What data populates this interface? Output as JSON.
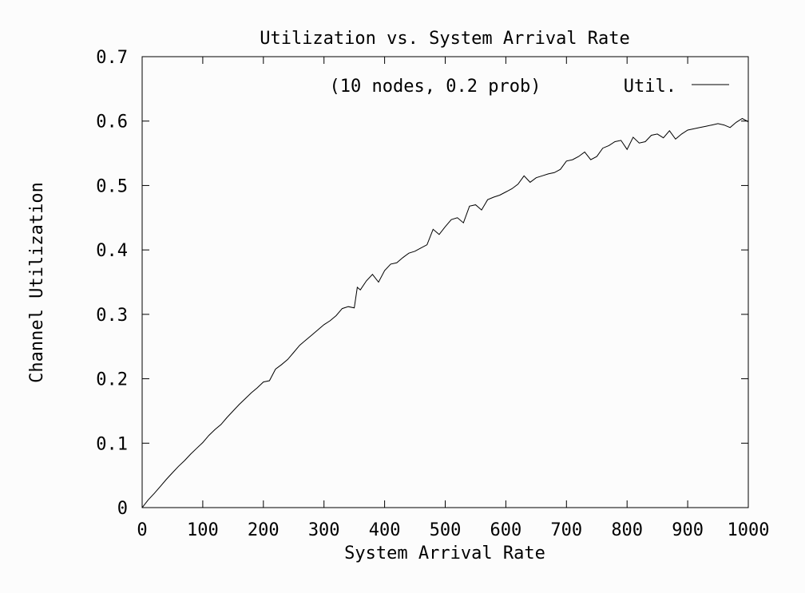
{
  "chart_data": {
    "type": "line",
    "title": "Utilization vs. System Arrival Rate",
    "xlabel": "System Arrival Rate",
    "ylabel": "Channel Utilization",
    "xlim": [
      0,
      1000
    ],
    "ylim": [
      0,
      0.7
    ],
    "xticks": [
      0,
      100,
      200,
      300,
      400,
      500,
      600,
      700,
      800,
      900,
      1000
    ],
    "yticks": [
      0,
      0.1,
      0.2,
      0.3,
      0.4,
      0.5,
      0.6,
      0.7
    ],
    "xtick_labels": [
      "0",
      "100",
      "200",
      "300",
      "400",
      "500",
      "600",
      "700",
      "800",
      "900",
      "1000"
    ],
    "ytick_labels": [
      "0",
      "0.1",
      "0.2",
      "0.3",
      "0.4",
      "0.5",
      "0.6",
      "0.7"
    ],
    "annotation": "(10 nodes, 0.2 prob)",
    "legend_position": "top-right",
    "grid": false,
    "series": [
      {
        "name": "Util.",
        "color": "#000000",
        "x": [
          0,
          10,
          20,
          30,
          40,
          50,
          60,
          70,
          80,
          90,
          100,
          110,
          120,
          130,
          140,
          150,
          160,
          170,
          180,
          190,
          200,
          210,
          220,
          230,
          240,
          250,
          260,
          270,
          280,
          290,
          300,
          310,
          320,
          330,
          340,
          350,
          355,
          360,
          370,
          380,
          390,
          400,
          410,
          420,
          430,
          440,
          450,
          460,
          470,
          480,
          490,
          500,
          510,
          520,
          530,
          540,
          550,
          560,
          570,
          580,
          590,
          600,
          610,
          620,
          630,
          640,
          650,
          660,
          670,
          680,
          690,
          700,
          710,
          720,
          730,
          740,
          750,
          760,
          770,
          780,
          790,
          800,
          810,
          820,
          830,
          840,
          850,
          860,
          870,
          880,
          890,
          900,
          910,
          920,
          930,
          940,
          950,
          960,
          970,
          980,
          990,
          1000
        ],
        "y": [
          0,
          0.012,
          0.022,
          0.033,
          0.044,
          0.054,
          0.064,
          0.073,
          0.083,
          0.092,
          0.101,
          0.112,
          0.121,
          0.129,
          0.14,
          0.15,
          0.16,
          0.169,
          0.178,
          0.186,
          0.195,
          0.197,
          0.215,
          0.222,
          0.23,
          0.241,
          0.252,
          0.26,
          0.268,
          0.276,
          0.284,
          0.29,
          0.298,
          0.309,
          0.312,
          0.31,
          0.342,
          0.338,
          0.352,
          0.362,
          0.35,
          0.368,
          0.378,
          0.38,
          0.388,
          0.395,
          0.398,
          0.403,
          0.408,
          0.432,
          0.424,
          0.436,
          0.447,
          0.45,
          0.442,
          0.468,
          0.47,
          0.462,
          0.478,
          0.482,
          0.485,
          0.49,
          0.495,
          0.502,
          0.515,
          0.505,
          0.512,
          0.515,
          0.518,
          0.52,
          0.525,
          0.538,
          0.54,
          0.545,
          0.552,
          0.54,
          0.545,
          0.558,
          0.562,
          0.568,
          0.57,
          0.556,
          0.575,
          0.566,
          0.568,
          0.578,
          0.58,
          0.574,
          0.585,
          0.572,
          0.58,
          0.586,
          0.588,
          0.59,
          0.592,
          0.594,
          0.596,
          0.594,
          0.59,
          0.598,
          0.604,
          0.599
        ]
      }
    ]
  }
}
